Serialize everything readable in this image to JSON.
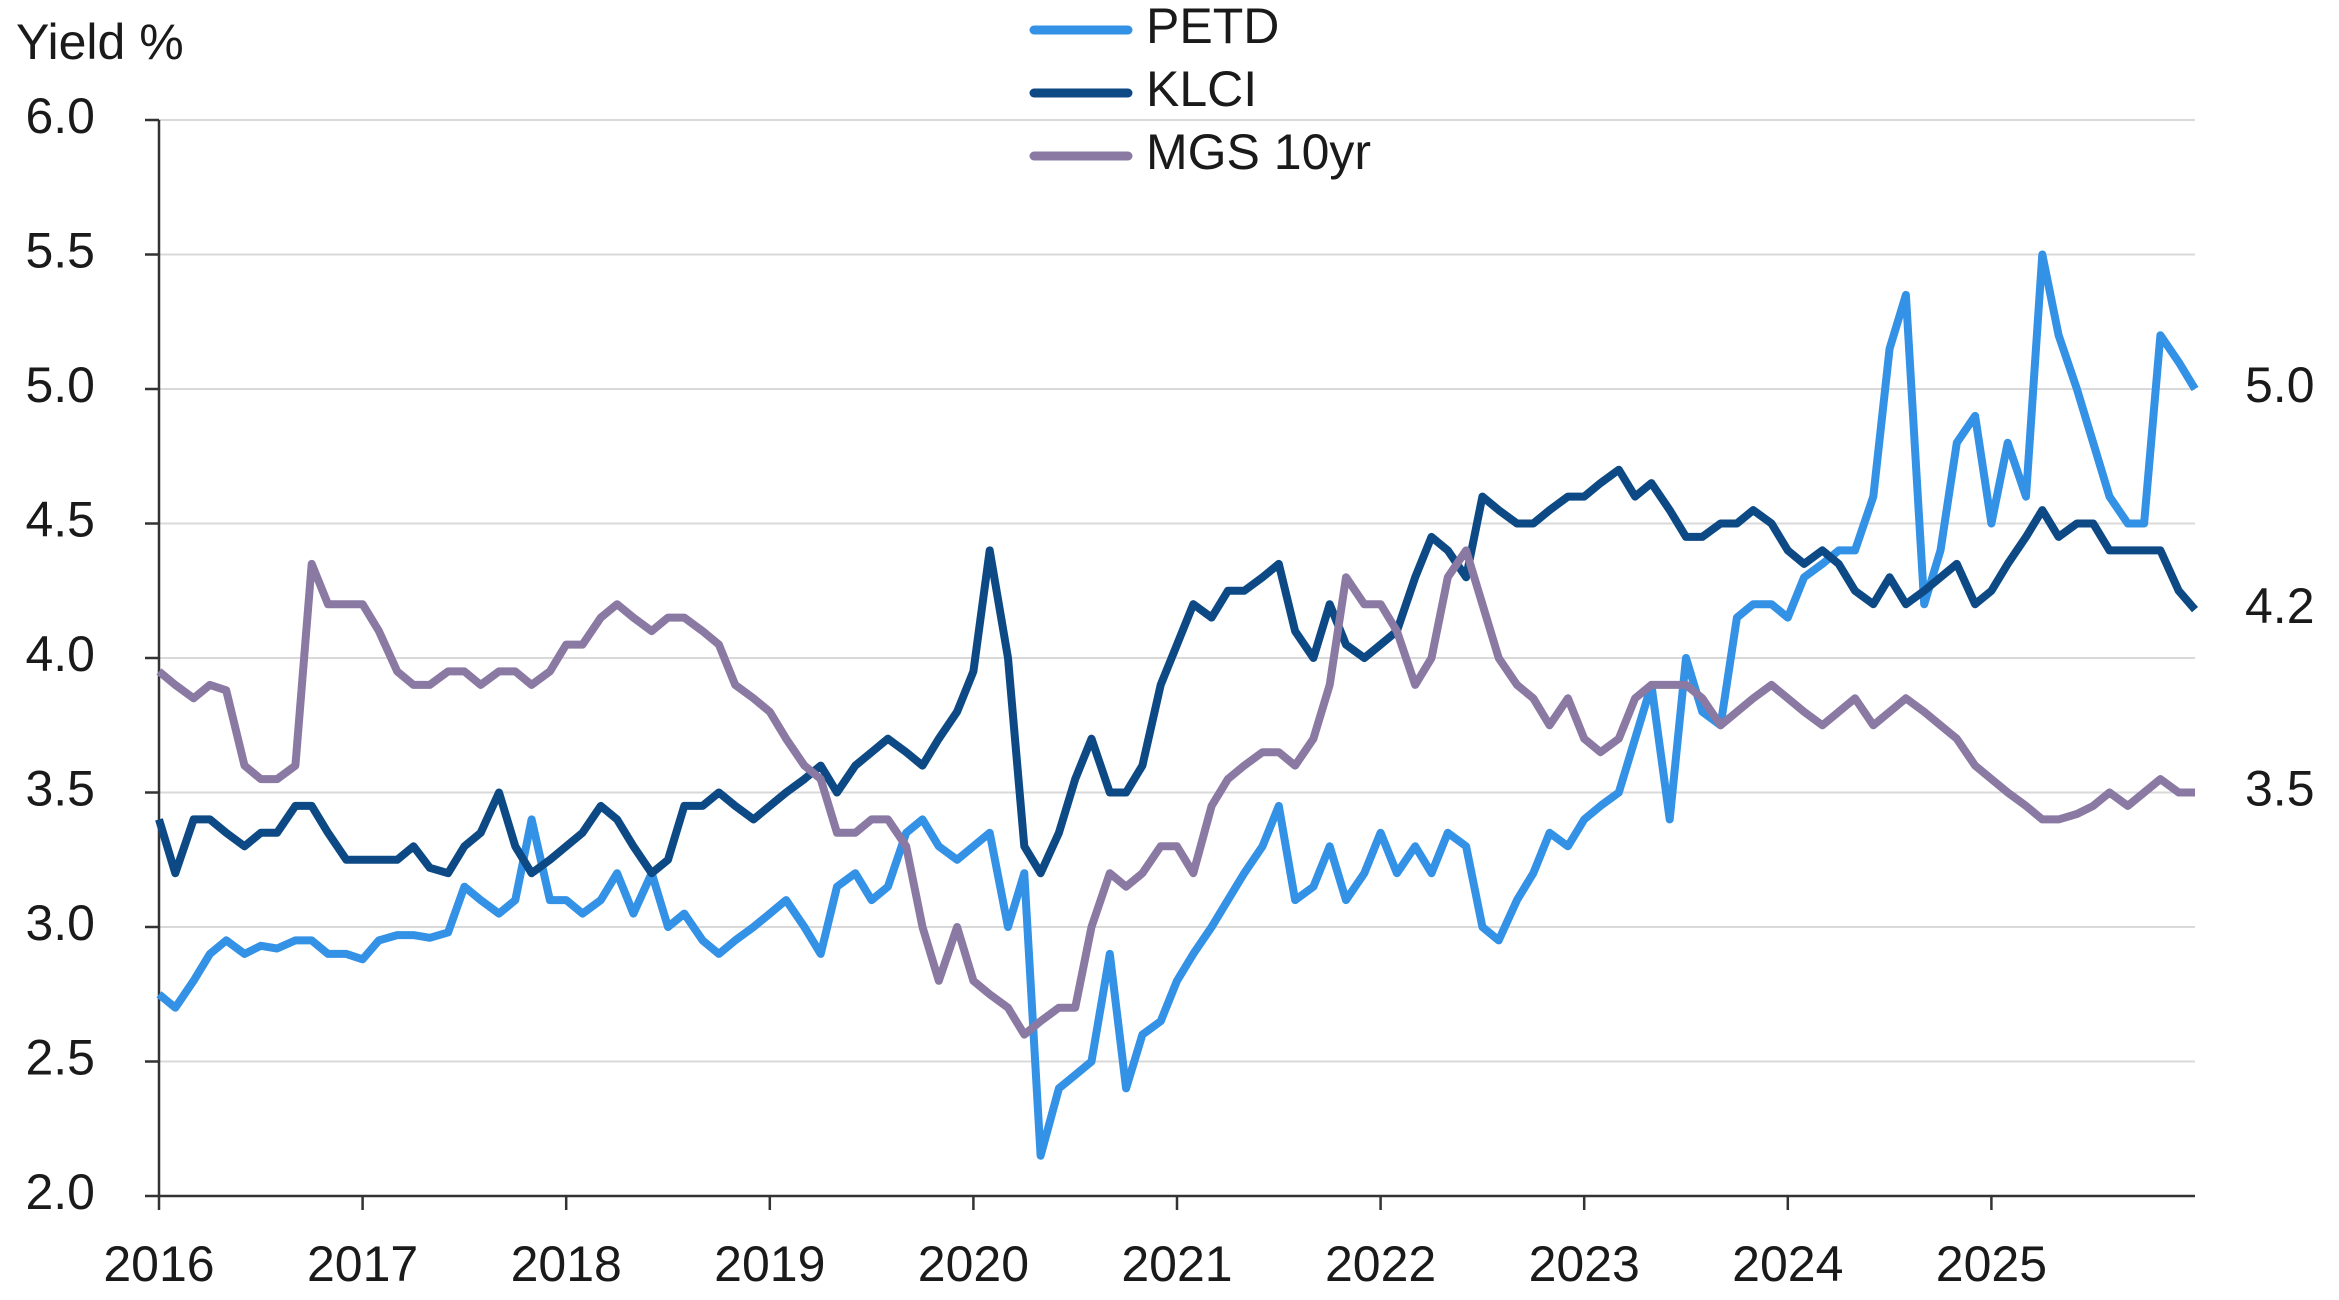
{
  "chart_data": {
    "type": "line",
    "y_label": "Yield %",
    "x": [
      2016,
      2016.08,
      2016.17,
      2016.25,
      2016.33,
      2016.42,
      2016.5,
      2016.58,
      2016.67,
      2016.75,
      2016.83,
      2016.92,
      2017,
      2017.08,
      2017.17,
      2017.25,
      2017.33,
      2017.42,
      2017.5,
      2017.58,
      2017.67,
      2017.75,
      2017.83,
      2017.92,
      2018,
      2018.08,
      2018.17,
      2018.25,
      2018.33,
      2018.42,
      2018.5,
      2018.58,
      2018.67,
      2018.75,
      2018.83,
      2018.92,
      2019,
      2019.08,
      2019.17,
      2019.25,
      2019.33,
      2019.42,
      2019.5,
      2019.58,
      2019.67,
      2019.75,
      2019.83,
      2019.92,
      2020,
      2020.08,
      2020.17,
      2020.25,
      2020.33,
      2020.42,
      2020.5,
      2020.58,
      2020.67,
      2020.75,
      2020.83,
      2020.92,
      2021,
      2021.08,
      2021.17,
      2021.25,
      2021.33,
      2021.42,
      2021.5,
      2021.58,
      2021.67,
      2021.75,
      2021.83,
      2021.92,
      2022,
      2022.08,
      2022.17,
      2022.25,
      2022.33,
      2022.42,
      2022.5,
      2022.58,
      2022.67,
      2022.75,
      2022.83,
      2022.92,
      2023,
      2023.08,
      2023.17,
      2023.25,
      2023.33,
      2023.42,
      2023.5,
      2023.58,
      2023.67,
      2023.75,
      2023.83,
      2023.92,
      2024,
      2024.08,
      2024.17,
      2024.25,
      2024.33,
      2024.42,
      2024.5,
      2024.58,
      2024.67,
      2024.75,
      2024.83,
      2024.92,
      2025,
      2025.08,
      2025.17,
      2025.25,
      2025.33,
      2025.42,
      2025.5,
      2025.58,
      2025.67,
      2025.75,
      2025.83,
      2025.92,
      2026
    ],
    "series": [
      {
        "name": "PETD",
        "color": "#3391e6",
        "values": [
          2.75,
          2.7,
          2.8,
          2.9,
          2.95,
          2.9,
          2.93,
          2.92,
          2.95,
          2.95,
          2.9,
          2.9,
          2.88,
          2.95,
          2.97,
          2.97,
          2.96,
          2.98,
          3.15,
          3.1,
          3.05,
          3.1,
          3.4,
          3.1,
          3.1,
          3.05,
          3.1,
          3.2,
          3.05,
          3.2,
          3.0,
          3.05,
          2.95,
          2.9,
          2.95,
          3.0,
          3.05,
          3.1,
          3.0,
          2.9,
          3.15,
          3.2,
          3.1,
          3.15,
          3.35,
          3.4,
          3.3,
          3.25,
          3.3,
          3.35,
          3.0,
          3.2,
          2.15,
          2.4,
          2.45,
          2.5,
          2.9,
          2.4,
          2.6,
          2.65,
          2.8,
          2.9,
          3.0,
          3.1,
          3.2,
          3.3,
          3.45,
          3.1,
          3.15,
          3.3,
          3.1,
          3.2,
          3.35,
          3.2,
          3.3,
          3.2,
          3.35,
          3.3,
          3.0,
          2.95,
          3.1,
          3.2,
          3.35,
          3.3,
          3.4,
          3.45,
          3.5,
          3.7,
          3.9,
          3.4,
          4.0,
          3.8,
          3.75,
          4.15,
          4.2,
          4.2,
          4.15,
          4.3,
          4.35,
          4.4,
          4.4,
          4.6,
          5.15,
          5.35,
          4.2,
          4.4,
          4.8,
          4.9,
          4.5,
          4.8,
          4.6,
          5.5,
          5.2,
          5.0,
          4.8,
          4.6,
          4.5,
          4.5,
          5.2,
          5.1,
          5.0
        ],
        "value_labels": [
          null,
          null,
          null,
          null,
          null,
          null,
          null,
          null,
          null,
          null,
          null,
          null,
          null,
          null,
          null,
          null,
          null,
          null,
          null,
          null,
          null,
          null,
          null,
          null,
          null,
          null,
          null,
          null,
          null,
          null,
          null,
          null,
          null,
          null,
          null,
          null,
          null,
          null,
          null,
          null,
          null,
          null,
          null,
          null,
          null,
          null,
          null,
          null,
          null,
          null,
          null,
          null,
          null,
          null,
          null,
          null,
          null,
          null,
          null,
          null,
          null,
          null,
          null,
          null,
          null,
          null,
          null,
          null,
          null,
          null,
          null,
          null,
          null,
          null,
          null,
          null,
          null,
          null,
          null,
          null,
          null,
          null,
          null,
          null,
          null,
          null,
          null,
          null,
          null,
          null,
          null,
          null,
          null,
          null,
          null,
          null,
          null,
          null,
          null,
          null,
          null,
          null,
          null,
          null,
          null,
          null,
          null,
          null,
          null,
          null,
          null,
          null,
          null,
          null,
          null,
          null,
          null,
          null,
          null,
          null,
          "5.0"
        ]
      },
      {
        "name": "KLCI",
        "color": "#0d4a85",
        "values": [
          3.4,
          3.2,
          3.4,
          3.4,
          3.35,
          3.3,
          3.35,
          3.35,
          3.45,
          3.45,
          3.35,
          3.25,
          3.25,
          3.25,
          3.25,
          3.3,
          3.22,
          3.2,
          3.3,
          3.35,
          3.5,
          3.3,
          3.2,
          3.25,
          3.3,
          3.35,
          3.45,
          3.4,
          3.3,
          3.2,
          3.25,
          3.45,
          3.45,
          3.5,
          3.45,
          3.4,
          3.45,
          3.5,
          3.55,
          3.6,
          3.5,
          3.6,
          3.65,
          3.7,
          3.65,
          3.6,
          3.7,
          3.8,
          3.95,
          4.4,
          4.0,
          3.3,
          3.2,
          3.35,
          3.55,
          3.7,
          3.5,
          3.5,
          3.6,
          3.9,
          4.05,
          4.2,
          4.15,
          4.25,
          4.25,
          4.3,
          4.35,
          4.1,
          4.0,
          4.2,
          4.05,
          4.0,
          4.05,
          4.1,
          4.3,
          4.45,
          4.4,
          4.3,
          4.6,
          4.55,
          4.5,
          4.5,
          4.55,
          4.6,
          4.6,
          4.65,
          4.7,
          4.6,
          4.65,
          4.55,
          4.45,
          4.45,
          4.5,
          4.5,
          4.55,
          4.5,
          4.4,
          4.35,
          4.4,
          4.35,
          4.25,
          4.2,
          4.3,
          4.2,
          4.25,
          4.3,
          4.35,
          4.2,
          4.25,
          4.35,
          4.45,
          4.55,
          4.45,
          4.5,
          4.5,
          4.4,
          4.4,
          4.4,
          4.4,
          4.25,
          4.18
        ],
        "value_labels": [
          null,
          null,
          null,
          null,
          null,
          null,
          null,
          null,
          null,
          null,
          null,
          null,
          null,
          null,
          null,
          null,
          null,
          null,
          null,
          null,
          null,
          null,
          null,
          null,
          null,
          null,
          null,
          null,
          null,
          null,
          null,
          null,
          null,
          null,
          null,
          null,
          null,
          null,
          null,
          null,
          null,
          null,
          null,
          null,
          null,
          null,
          null,
          null,
          null,
          null,
          null,
          null,
          null,
          null,
          null,
          null,
          null,
          null,
          null,
          null,
          null,
          null,
          null,
          null,
          null,
          null,
          null,
          null,
          null,
          null,
          null,
          null,
          null,
          null,
          null,
          null,
          null,
          null,
          null,
          null,
          null,
          null,
          null,
          null,
          null,
          null,
          null,
          null,
          null,
          null,
          null,
          null,
          null,
          null,
          null,
          null,
          null,
          null,
          null,
          null,
          null,
          null,
          null,
          null,
          null,
          null,
          null,
          null,
          null,
          null,
          null,
          null,
          null,
          null,
          null,
          null,
          null,
          null,
          null,
          null,
          "4.2"
        ]
      },
      {
        "name": "MGS 10yr",
        "color": "#8a79a3",
        "values": [
          3.95,
          3.9,
          3.85,
          3.9,
          3.88,
          3.6,
          3.55,
          3.55,
          3.6,
          4.35,
          4.2,
          4.2,
          4.2,
          4.1,
          3.95,
          3.9,
          3.9,
          3.95,
          3.95,
          3.9,
          3.95,
          3.95,
          3.9,
          3.95,
          4.05,
          4.05,
          4.15,
          4.2,
          4.15,
          4.1,
          4.15,
          4.15,
          4.1,
          4.05,
          3.9,
          3.85,
          3.8,
          3.7,
          3.6,
          3.55,
          3.35,
          3.35,
          3.4,
          3.4,
          3.3,
          3.0,
          2.8,
          3.0,
          2.8,
          2.75,
          2.7,
          2.6,
          2.65,
          2.7,
          2.7,
          3.0,
          3.2,
          3.15,
          3.2,
          3.3,
          3.3,
          3.2,
          3.45,
          3.55,
          3.6,
          3.65,
          3.65,
          3.6,
          3.7,
          3.9,
          4.3,
          4.2,
          4.2,
          4.1,
          3.9,
          4.0,
          4.3,
          4.4,
          4.2,
          4.0,
          3.9,
          3.85,
          3.75,
          3.85,
          3.7,
          3.65,
          3.7,
          3.85,
          3.9,
          3.9,
          3.9,
          3.85,
          3.75,
          3.8,
          3.85,
          3.9,
          3.85,
          3.8,
          3.75,
          3.8,
          3.85,
          3.75,
          3.8,
          3.85,
          3.8,
          3.75,
          3.7,
          3.6,
          3.55,
          3.5,
          3.45,
          3.4,
          3.4,
          3.42,
          3.45,
          3.5,
          3.45,
          3.5,
          3.55,
          3.5,
          3.5
        ],
        "value_labels": [
          null,
          null,
          null,
          null,
          null,
          null,
          null,
          null,
          null,
          null,
          null,
          null,
          null,
          null,
          null,
          null,
          null,
          null,
          null,
          null,
          null,
          null,
          null,
          null,
          null,
          null,
          null,
          null,
          null,
          null,
          null,
          null,
          null,
          null,
          null,
          null,
          null,
          null,
          null,
          null,
          null,
          null,
          null,
          null,
          null,
          null,
          null,
          null,
          null,
          null,
          null,
          null,
          null,
          null,
          null,
          null,
          null,
          null,
          null,
          null,
          null,
          null,
          null,
          null,
          null,
          null,
          null,
          null,
          null,
          null,
          null,
          null,
          null,
          null,
          null,
          null,
          null,
          null,
          null,
          null,
          null,
          null,
          null,
          null,
          null,
          null,
          null,
          null,
          null,
          null,
          null,
          null,
          null,
          null,
          null,
          null,
          null,
          null,
          null,
          null,
          null,
          null,
          null,
          null,
          null,
          null,
          null,
          null,
          null,
          null,
          null,
          null,
          null,
          null,
          null,
          null,
          null,
          null,
          null,
          null,
          "3.5"
        ]
      }
    ],
    "xlim": [
      2016,
      2026
    ],
    "xticks": [
      2016,
      2017,
      2018,
      2019,
      2020,
      2021,
      2022,
      2023,
      2024,
      2025
    ],
    "ylim": [
      2,
      6
    ],
    "yticks": [
      {
        "value": 2,
        "label": "2.0"
      },
      {
        "value": 2.5,
        "label": "2.5"
      },
      {
        "value": 3,
        "label": "3.0"
      },
      {
        "value": 3.5,
        "label": "3.5"
      },
      {
        "value": 4,
        "label": "4.0"
      },
      {
        "value": 4.5,
        "label": "4.5"
      },
      {
        "value": 5,
        "label": "5.0"
      },
      {
        "value": 5.5,
        "label": "5.5"
      },
      {
        "value": 6,
        "label": "6.0"
      }
    ],
    "grid": true,
    "legend": "top"
  }
}
